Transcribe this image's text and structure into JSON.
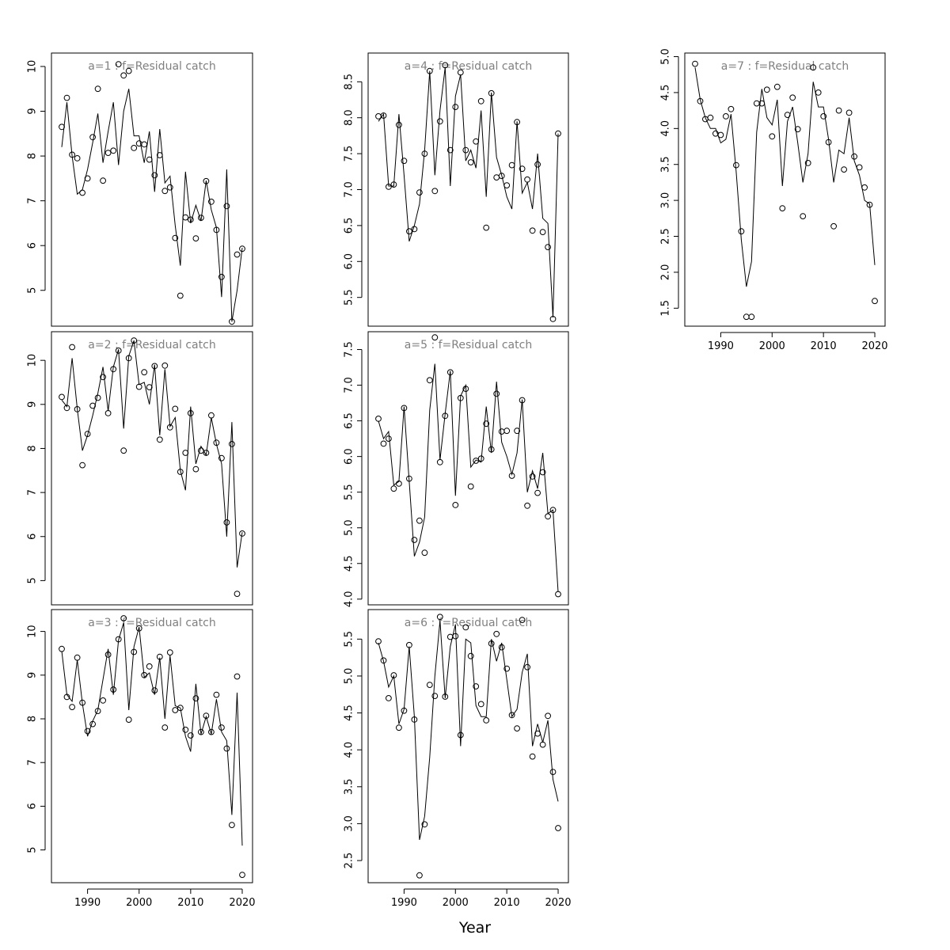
{
  "figure": {
    "xlabel": "Year"
  },
  "chart_data": [
    {
      "type": "line",
      "title": "a=1  :  f=Residual catch",
      "xlim": [
        1983,
        2022
      ],
      "ylim": [
        4.2,
        10.3
      ],
      "xticks": [
        1990,
        2000,
        2010,
        2020
      ],
      "yticks": [
        5,
        6,
        7,
        8,
        9,
        10
      ],
      "x": [
        1985,
        1986,
        1987,
        1988,
        1989,
        1990,
        1991,
        1992,
        1993,
        1994,
        1995,
        1996,
        1997,
        1998,
        1999,
        2000,
        2001,
        2002,
        2003,
        2004,
        2005,
        2006,
        2007,
        2008,
        2009,
        2010,
        2011,
        2012,
        2013,
        2014,
        2015,
        2016,
        2017,
        2018,
        2019,
        2020
      ],
      "series": [
        {
          "role": "observed-points",
          "values": [
            8.65,
            9.3,
            8.03,
            7.95,
            7.18,
            7.5,
            8.42,
            9.5,
            7.45,
            8.07,
            8.12,
            10.05,
            9.8,
            9.9,
            8.18,
            8.28,
            8.26,
            7.92,
            7.57,
            8.02,
            7.22,
            7.3,
            6.17,
            4.88,
            6.63,
            6.58,
            6.16,
            6.62,
            7.44,
            6.98,
            6.35,
            5.3,
            6.88,
            4.3,
            5.8,
            5.93
          ]
        },
        {
          "role": "fitted-line",
          "values": [
            8.2,
            9.2,
            8.0,
            7.15,
            7.25,
            7.7,
            8.3,
            8.95,
            7.85,
            8.55,
            9.2,
            7.8,
            9.0,
            9.5,
            8.45,
            8.45,
            7.85,
            8.55,
            7.2,
            8.6,
            7.4,
            7.55,
            6.45,
            5.55,
            7.65,
            6.5,
            6.9,
            6.55,
            7.45,
            6.8,
            6.4,
            4.85,
            7.7,
            4.3,
            5.0,
            5.95
          ]
        }
      ]
    },
    {
      "type": "line",
      "title": "a=2  :  f=Residual catch",
      "xlim": [
        1983,
        2022
      ],
      "ylim": [
        4.45,
        10.65
      ],
      "xticks": [
        1990,
        2000,
        2010,
        2020
      ],
      "yticks": [
        5,
        6,
        7,
        8,
        9,
        10
      ],
      "x": [
        1985,
        1986,
        1987,
        1988,
        1989,
        1990,
        1991,
        1992,
        1993,
        1994,
        1995,
        1996,
        1997,
        1998,
        1999,
        2000,
        2001,
        2002,
        2003,
        2004,
        2005,
        2006,
        2007,
        2008,
        2009,
        2010,
        2011,
        2012,
        2013,
        2014,
        2015,
        2016,
        2017,
        2018,
        2019,
        2020
      ],
      "series": [
        {
          "role": "observed-points",
          "values": [
            9.17,
            8.92,
            10.3,
            8.89,
            7.62,
            8.33,
            8.97,
            9.15,
            9.62,
            8.8,
            9.8,
            10.22,
            7.95,
            10.05,
            10.45,
            9.4,
            9.73,
            9.39,
            9.87,
            8.2,
            9.88,
            8.48,
            8.9,
            7.47,
            7.9,
            8.8,
            7.53,
            7.95,
            7.9,
            8.75,
            8.13,
            7.78,
            6.32,
            8.1,
            4.7,
            6.07
          ]
        },
        {
          "role": "fitted-line",
          "values": [
            9.1,
            8.95,
            10.05,
            8.9,
            7.95,
            8.3,
            8.75,
            9.25,
            9.85,
            8.85,
            9.85,
            10.25,
            8.45,
            10.1,
            10.45,
            9.45,
            9.5,
            9.0,
            9.9,
            8.3,
            9.8,
            8.5,
            8.7,
            7.5,
            7.05,
            8.95,
            7.65,
            8.05,
            7.85,
            8.7,
            8.1,
            7.65,
            6.0,
            8.6,
            5.3,
            6.1
          ]
        }
      ]
    },
    {
      "type": "line",
      "title": "a=3  :  f=Residual catch",
      "xlim": [
        1983,
        2022
      ],
      "ylim": [
        4.25,
        10.5
      ],
      "xticks": [
        1990,
        2000,
        2010,
        2020
      ],
      "yticks": [
        5,
        6,
        7,
        8,
        9,
        10
      ],
      "x": [
        1985,
        1986,
        1987,
        1988,
        1989,
        1990,
        1991,
        1992,
        1993,
        1994,
        1995,
        1996,
        1997,
        1998,
        1999,
        2000,
        2001,
        2002,
        2003,
        2004,
        2005,
        2006,
        2007,
        2008,
        2009,
        2010,
        2011,
        2012,
        2013,
        2014,
        2015,
        2016,
        2017,
        2018,
        2019,
        2020
      ],
      "series": [
        {
          "role": "observed-points",
          "values": [
            9.6,
            8.5,
            8.27,
            9.4,
            8.37,
            7.72,
            7.88,
            8.18,
            8.42,
            9.47,
            8.67,
            9.82,
            10.3,
            7.98,
            9.53,
            10.07,
            9.0,
            9.2,
            8.65,
            9.42,
            7.8,
            9.52,
            8.2,
            8.25,
            7.75,
            7.62,
            8.47,
            7.7,
            8.07,
            7.7,
            8.55,
            7.8,
            7.32,
            5.57,
            8.97,
            4.43
          ]
        },
        {
          "role": "fitted-line",
          "values": [
            9.55,
            8.55,
            8.4,
            9.35,
            8.35,
            7.6,
            7.95,
            8.2,
            8.9,
            9.6,
            8.55,
            9.8,
            10.2,
            8.2,
            9.65,
            10.1,
            8.95,
            9.05,
            8.55,
            9.4,
            8.0,
            9.45,
            8.3,
            8.25,
            7.6,
            7.25,
            8.8,
            7.65,
            8.05,
            7.65,
            8.45,
            7.7,
            7.5,
            5.8,
            8.6,
            5.1
          ]
        }
      ]
    },
    {
      "type": "line",
      "title": "a=4  :  f=Residual catch",
      "xlim": [
        1983,
        2022
      ],
      "ylim": [
        5.1,
        8.9
      ],
      "xticks": [
        1990,
        2000,
        2010,
        2020
      ],
      "yticks": [
        5.5,
        6.0,
        6.5,
        7.0,
        7.5,
        8.0,
        8.5
      ],
      "x": [
        1985,
        1986,
        1987,
        1988,
        1989,
        1990,
        1991,
        1992,
        1993,
        1994,
        1995,
        1996,
        1997,
        1998,
        1999,
        2000,
        2001,
        2002,
        2003,
        2004,
        2005,
        2006,
        2007,
        2008,
        2009,
        2010,
        2011,
        2012,
        2013,
        2014,
        2015,
        2016,
        2017,
        2018,
        2019,
        2020
      ],
      "series": [
        {
          "role": "observed-points",
          "values": [
            8.02,
            8.03,
            7.04,
            7.07,
            7.9,
            7.4,
            6.42,
            6.45,
            6.96,
            7.5,
            8.65,
            6.98,
            7.95,
            8.73,
            7.55,
            8.15,
            8.63,
            7.55,
            7.38,
            7.67,
            8.23,
            6.47,
            8.34,
            7.17,
            7.19,
            7.06,
            7.34,
            7.94,
            7.29,
            7.14,
            6.43,
            7.35,
            6.41,
            6.2,
            5.2,
            7.78
          ]
        },
        {
          "role": "fitted-line",
          "values": [
            7.95,
            8.05,
            7.05,
            7.05,
            8.05,
            7.2,
            6.28,
            6.5,
            6.8,
            7.55,
            8.65,
            7.2,
            8.1,
            8.7,
            7.05,
            8.3,
            8.6,
            7.4,
            7.55,
            7.3,
            8.1,
            6.9,
            8.35,
            7.45,
            7.2,
            6.9,
            6.73,
            7.95,
            6.95,
            7.1,
            6.73,
            7.5,
            6.6,
            6.53,
            5.22,
            7.78
          ]
        }
      ]
    },
    {
      "type": "line",
      "title": "a=5  :  f=Residual catch",
      "xlim": [
        1983,
        2022
      ],
      "ylim": [
        3.92,
        7.75
      ],
      "xticks": [
        1990,
        2000,
        2010,
        2020
      ],
      "yticks": [
        4.0,
        4.5,
        5.0,
        5.5,
        6.0,
        6.5,
        7.0,
        7.5
      ],
      "x": [
        1985,
        1986,
        1987,
        1988,
        1989,
        1990,
        1991,
        1992,
        1993,
        1994,
        1995,
        1996,
        1997,
        1998,
        1999,
        2000,
        2001,
        2002,
        2003,
        2004,
        2005,
        2006,
        2007,
        2008,
        2009,
        2010,
        2011,
        2012,
        2013,
        2014,
        2015,
        2016,
        2017,
        2018,
        2019,
        2020
      ],
      "series": [
        {
          "role": "observed-points",
          "values": [
            6.53,
            6.18,
            6.25,
            5.55,
            5.62,
            6.68,
            5.69,
            4.83,
            5.1,
            4.65,
            7.07,
            7.67,
            5.92,
            6.57,
            7.18,
            5.32,
            6.82,
            6.95,
            5.58,
            5.94,
            5.97,
            6.46,
            6.1,
            6.88,
            6.35,
            6.36,
            5.73,
            6.36,
            6.79,
            5.31,
            5.72,
            5.49,
            5.78,
            5.16,
            5.25,
            4.07
          ]
        },
        {
          "role": "fitted-line",
          "values": [
            6.5,
            6.25,
            6.35,
            5.6,
            5.65,
            6.7,
            5.65,
            4.6,
            4.8,
            5.15,
            6.65,
            7.3,
            5.95,
            6.6,
            7.2,
            5.45,
            6.85,
            7.0,
            5.85,
            5.95,
            5.92,
            6.7,
            6.05,
            7.05,
            6.2,
            6.0,
            5.75,
            6.05,
            6.8,
            5.5,
            5.8,
            5.55,
            6.05,
            5.2,
            5.25,
            4.1
          ]
        }
      ]
    },
    {
      "type": "line",
      "title": "a=6  :  f=Residual catch",
      "xlim": [
        1983,
        2022
      ],
      "ylim": [
        2.2,
        5.9
      ],
      "xticks": [
        1990,
        2000,
        2010,
        2020
      ],
      "yticks": [
        2.5,
        3.0,
        3.5,
        4.0,
        4.5,
        5.0,
        5.5
      ],
      "x": [
        1985,
        1986,
        1987,
        1988,
        1989,
        1990,
        1991,
        1992,
        1993,
        1994,
        1995,
        1996,
        1997,
        1998,
        1999,
        2000,
        2001,
        2002,
        2003,
        2004,
        2005,
        2006,
        2007,
        2008,
        2009,
        2010,
        2011,
        2012,
        2013,
        2014,
        2015,
        2016,
        2017,
        2018,
        2019,
        2020
      ],
      "series": [
        {
          "role": "observed-points",
          "values": [
            5.47,
            5.21,
            4.7,
            5.01,
            4.3,
            4.53,
            5.42,
            4.41,
            2.3,
            2.99,
            4.88,
            4.73,
            5.8,
            4.72,
            5.53,
            5.54,
            4.2,
            5.66,
            5.27,
            4.86,
            4.62,
            4.4,
            5.44,
            5.57,
            5.39,
            5.1,
            4.47,
            4.29,
            5.76,
            5.12,
            3.91,
            4.22,
            4.07,
            4.46,
            3.7,
            2.94
          ]
        },
        {
          "role": "fitted-line",
          "values": [
            5.45,
            5.2,
            4.85,
            5.0,
            4.35,
            4.55,
            5.4,
            4.45,
            2.78,
            3.1,
            3.9,
            5.0,
            5.75,
            4.7,
            5.4,
            5.7,
            4.05,
            5.5,
            5.45,
            4.6,
            4.45,
            4.45,
            5.5,
            5.2,
            5.45,
            4.95,
            4.45,
            4.55,
            5.05,
            5.3,
            4.05,
            4.35,
            4.1,
            4.4,
            3.6,
            3.3
          ]
        }
      ]
    },
    {
      "type": "line",
      "title": "a=7  :  f=Residual catch",
      "xlim": [
        1983,
        2022
      ],
      "ylim": [
        1.25,
        5.05
      ],
      "xticks": [
        1990,
        2000,
        2010,
        2020
      ],
      "yticks": [
        1.5,
        2.0,
        2.5,
        3.0,
        3.5,
        4.0,
        4.5,
        5.0
      ],
      "x": [
        1985,
        1986,
        1987,
        1988,
        1989,
        1990,
        1991,
        1992,
        1993,
        1994,
        1995,
        1996,
        1997,
        1998,
        1999,
        2000,
        2001,
        2002,
        2003,
        2004,
        2005,
        2006,
        2007,
        2008,
        2009,
        2010,
        2011,
        2012,
        2013,
        2014,
        2015,
        2016,
        2017,
        2018,
        2019,
        2020
      ],
      "series": [
        {
          "role": "observed-points",
          "values": [
            4.9,
            4.38,
            4.13,
            4.15,
            3.93,
            3.91,
            4.17,
            4.27,
            3.49,
            2.57,
            1.38,
            1.38,
            4.35,
            4.35,
            4.54,
            3.89,
            4.58,
            2.89,
            4.19,
            4.43,
            3.99,
            2.78,
            3.52,
            4.85,
            4.5,
            4.17,
            3.81,
            2.64,
            4.25,
            3.43,
            4.22,
            3.61,
            3.46,
            3.18,
            2.94,
            1.6
          ]
        },
        {
          "role": "fitted-line",
          "values": [
            4.85,
            4.4,
            4.15,
            4.0,
            4.0,
            3.8,
            3.85,
            4.2,
            3.4,
            2.45,
            1.8,
            2.15,
            3.95,
            4.55,
            4.15,
            4.05,
            4.4,
            3.2,
            4.1,
            4.3,
            3.8,
            3.25,
            3.65,
            4.65,
            4.3,
            4.3,
            3.85,
            3.25,
            3.7,
            3.65,
            4.15,
            3.55,
            3.35,
            3.0,
            2.95,
            2.1
          ]
        }
      ]
    }
  ]
}
